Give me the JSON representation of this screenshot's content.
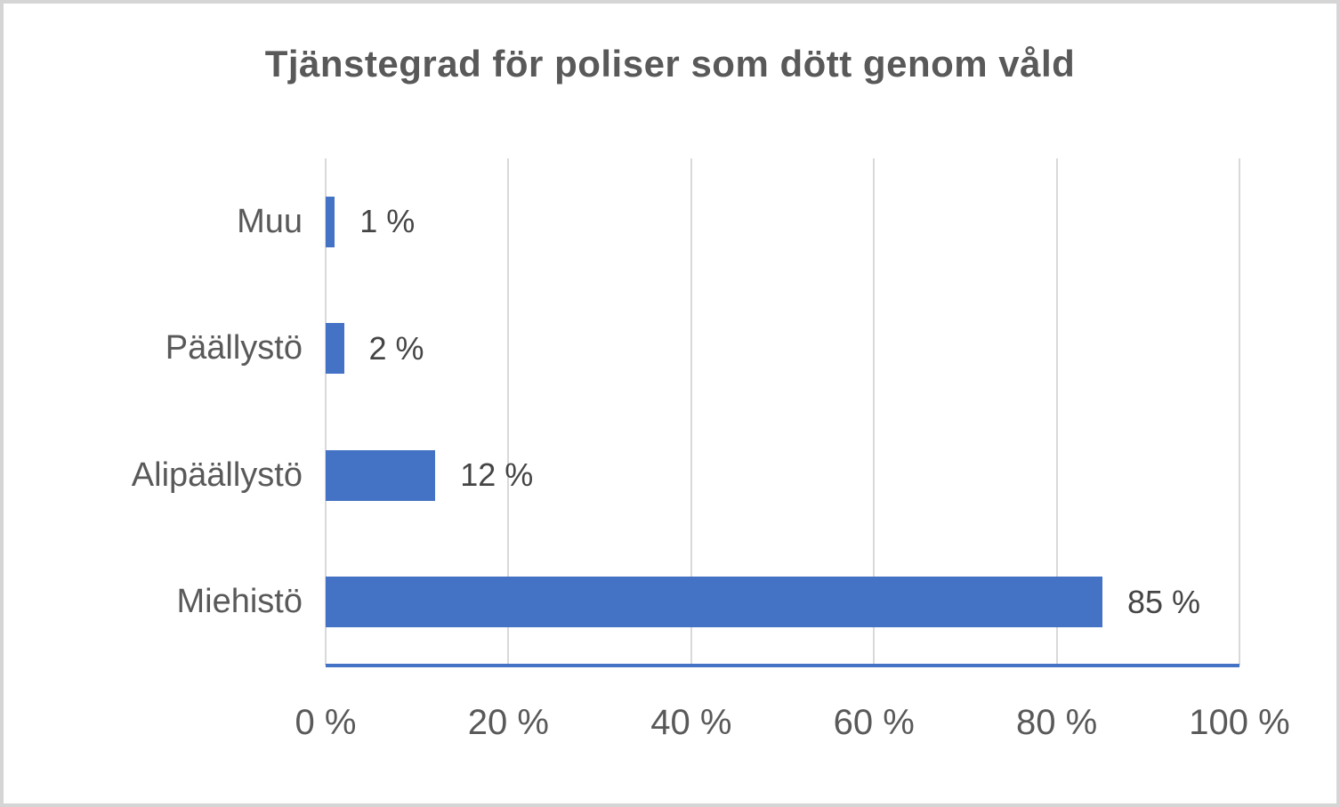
{
  "frame": {
    "background_color": "#ffffff",
    "border_color": "#d5d5d5"
  },
  "chart_data": {
    "type": "bar",
    "orientation": "horizontal",
    "title": "Tjänstegrad för poliser som dött genom våld",
    "categories": [
      "Muu",
      "Päällystö",
      "Alipäällystö",
      "Miehistö"
    ],
    "values": [
      1,
      2,
      12,
      85
    ],
    "data_labels": [
      "1 %",
      "2 %",
      "12 %",
      "85 %"
    ],
    "xlabel": "",
    "ylabel": "",
    "xlim": [
      0,
      100
    ],
    "x_ticks": [
      "0 %",
      "20 %",
      "40 %",
      "60 %",
      "80 %",
      "100 %"
    ],
    "x_tick_values": [
      0,
      20,
      40,
      60,
      80,
      100
    ],
    "grid": "vertical-only",
    "legend": "none",
    "bar_color": "#4472c4",
    "axis_line_color": "#4472c4",
    "gridline_color": "#d9d9d9",
    "title_color": "#595959",
    "label_color": "#595959"
  }
}
